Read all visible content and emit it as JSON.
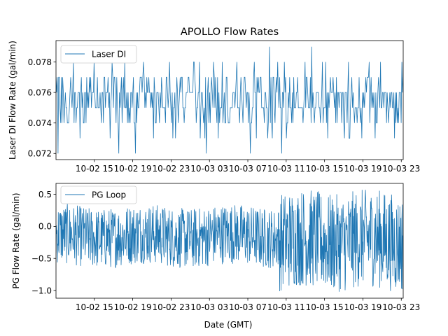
{
  "chart_data": [
    {
      "type": "line",
      "title": "APOLLO Flow Rates",
      "xlabel": "",
      "ylabel": "Laser DI Flow Rate (gal/min)",
      "series": [
        {
          "name": "Laser DI",
          "color": "#1f77b4",
          "levels": [
            0.072,
            0.073,
            0.074,
            0.075,
            0.076,
            0.077,
            0.078,
            0.079
          ],
          "center": 0.0755,
          "min": 0.072,
          "max": 0.079
        }
      ],
      "x_tick_labels": [
        "10-02 15",
        "10-02 19",
        "10-02 23",
        "10-03 03",
        "10-03 07",
        "10-03 11",
        "10-03 15",
        "10-03 19",
        "10-03 23"
      ],
      "xlim_hours": [
        11,
        47.2
      ],
      "x_tick_hours": [
        15,
        19,
        23,
        27,
        31,
        35,
        39,
        43,
        47
      ],
      "yticks": [
        0.072,
        0.074,
        0.076,
        0.078
      ],
      "ytick_labels": [
        "0.072",
        "0.074",
        "0.076",
        "0.078"
      ],
      "ylim": [
        0.0716,
        0.0794
      ],
      "legend": "top-left"
    },
    {
      "type": "line",
      "xlabel": "Date (GMT)",
      "ylabel": "PG Flow Rate (gal/min)",
      "series": [
        {
          "name": "PG Loop",
          "color": "#1f77b4",
          "step_hour": 34.2,
          "before_range": [
            -0.65,
            0.35
          ],
          "after_range": [
            -1.02,
            0.57
          ]
        }
      ],
      "x_tick_labels": [
        "10-02 15",
        "10-02 19",
        "10-02 23",
        "10-03 03",
        "10-03 07",
        "10-03 11",
        "10-03 15",
        "10-03 19",
        "10-03 23"
      ],
      "xlim_hours": [
        11,
        47.2
      ],
      "x_tick_hours": [
        15,
        19,
        23,
        27,
        31,
        35,
        39,
        43,
        47
      ],
      "yticks": [
        -1.0,
        -0.5,
        0.0,
        0.5
      ],
      "ytick_labels": [
        "−1.0",
        "−0.5",
        "0.0",
        "0.5"
      ],
      "ylim": [
        -1.12,
        0.67
      ],
      "legend": "top-left"
    }
  ]
}
